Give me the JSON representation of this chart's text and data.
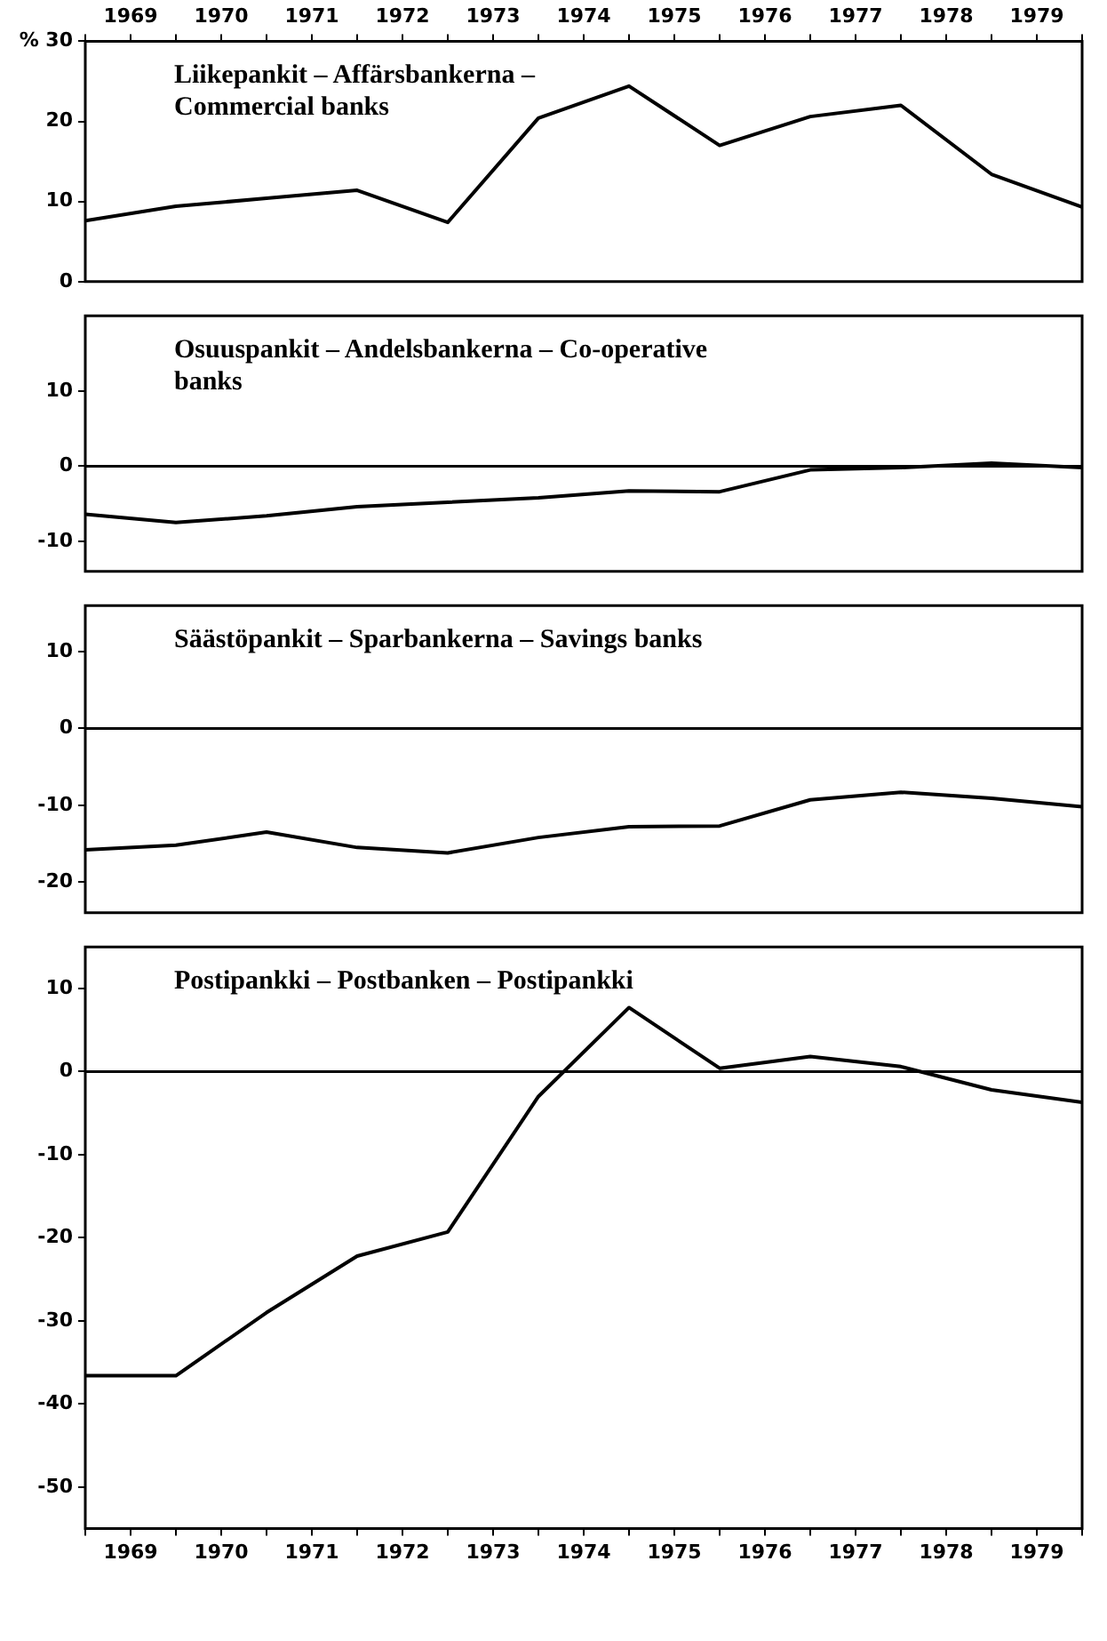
{
  "chart_data": [
    {
      "type": "line",
      "title": "Liikepankit – Affärsbankerna –\nCommercial banks",
      "x": [
        1969,
        1970,
        1971,
        1972,
        1973,
        1974,
        1975,
        1976,
        1977,
        1978,
        1979,
        1980
      ],
      "values": [
        7.6,
        9.4,
        10.4,
        11.4,
        7.4,
        20.4,
        24.4,
        17,
        20.6,
        22,
        13.4,
        9.3
      ],
      "color": "#000000",
      "xlim": [
        1969,
        1980
      ],
      "x2lim": [
        1969,
        1980
      ],
      "x2ticks": [
        {
          "value": 1969,
          "label": null
        },
        {
          "value": 1969.5,
          "label": "1969"
        },
        {
          "value": 1970,
          "label": null
        },
        {
          "value": 1970.5,
          "label": "1970"
        },
        {
          "value": 1971,
          "label": null
        },
        {
          "value": 1971.5,
          "label": "1971"
        },
        {
          "value": 1972,
          "label": null
        },
        {
          "value": 1972.5,
          "label": "1972"
        },
        {
          "value": 1973,
          "label": null
        },
        {
          "value": 1973.5,
          "label": "1973"
        },
        {
          "value": 1974,
          "label": null
        },
        {
          "value": 1974.5,
          "label": "1974"
        },
        {
          "value": 1975,
          "label": null
        },
        {
          "value": 1975.5,
          "label": "1975"
        },
        {
          "value": 1976,
          "label": null
        },
        {
          "value": 1976.5,
          "label": "1976"
        },
        {
          "value": 1977,
          "label": null
        },
        {
          "value": 1977.5,
          "label": "1977"
        },
        {
          "value": 1978,
          "label": null
        },
        {
          "value": 1978.5,
          "label": "1978"
        },
        {
          "value": 1979,
          "label": null
        },
        {
          "value": 1979.5,
          "label": "1979"
        },
        {
          "value": 1980,
          "label": null
        }
      ],
      "ylim": [
        0,
        30
      ],
      "yticks": [
        0,
        10,
        20,
        {
          "value": 30,
          "label": "% 30"
        }
      ],
      "grid": false,
      "legend": false,
      "marker": "none",
      "line_style": "solid"
    },
    {
      "type": "line",
      "title": "Osuuspankit – Andelsbankerna – Co-operative\nbanks",
      "x": [
        1969,
        1970,
        1971,
        1972,
        1973,
        1974,
        1975,
        1976,
        1977,
        1978,
        1979,
        1980
      ],
      "values": [
        -6.4,
        -7.5,
        -6.6,
        -5.4,
        -4.8,
        -4.2,
        -3.3,
        -3.4,
        -0.5,
        -0.2,
        0.4,
        -0.2
      ],
      "color": "#000000",
      "xlim": [
        1969,
        1980
      ],
      "ylim": [
        -14,
        20
      ],
      "yticks": [
        -10,
        0,
        10
      ],
      "tick_labels": "y",
      "ref_lines": [
        {
          "axis": "y",
          "value": 0,
          "color": "#000000"
        }
      ],
      "grid": false,
      "legend": false,
      "marker": "none",
      "line_style": "solid"
    },
    {
      "type": "line",
      "title": "Säästöpankit – Sparbankerna – Savings banks",
      "x": [
        1969,
        1970,
        1971,
        1972,
        1973,
        1974,
        1975,
        1976,
        1977,
        1978,
        1979,
        1980
      ],
      "values": [
        -15.8,
        -15.2,
        -13.5,
        -15.5,
        -16.2,
        -14.2,
        -12.8,
        -12.7,
        -9.3,
        -8.3,
        -9.1,
        -10.2
      ],
      "color": "#000000",
      "xlim": [
        1969,
        1980
      ],
      "ylim": [
        -24,
        16
      ],
      "yticks": [
        -20,
        -10,
        0,
        10
      ],
      "tick_labels": "y",
      "ref_lines": [
        {
          "axis": "y",
          "value": 0,
          "color": "#000000"
        }
      ],
      "grid": false,
      "legend": false,
      "marker": "none",
      "line_style": "solid"
    },
    {
      "type": "line",
      "title": "Postipankki – Postbanken – Postipankki",
      "x": [
        1969,
        1970,
        1971,
        1972,
        1973,
        1974,
        1975,
        1976,
        1977,
        1978,
        1979,
        1980
      ],
      "values": [
        -36.6,
        -36.6,
        -29,
        -22.2,
        -19.3,
        -3,
        7.7,
        0.4,
        1.8,
        0.6,
        -2.2,
        -3.7
      ],
      "color": "#000000",
      "xlim": [
        1969,
        1980
      ],
      "xticks": [
        {
          "value": 1969,
          "label": null
        },
        {
          "value": 1969.5,
          "label": "1969"
        },
        {
          "value": 1970,
          "label": null
        },
        {
          "value": 1970.5,
          "label": "1970"
        },
        {
          "value": 1971,
          "label": null
        },
        {
          "value": 1971.5,
          "label": "1971"
        },
        {
          "value": 1972,
          "label": null
        },
        {
          "value": 1972.5,
          "label": "1972"
        },
        {
          "value": 1973,
          "label": null
        },
        {
          "value": 1973.5,
          "label": "1973"
        },
        {
          "value": 1974,
          "label": null
        },
        {
          "value": 1974.5,
          "label": "1974"
        },
        {
          "value": 1975,
          "label": null
        },
        {
          "value": 1975.5,
          "label": "1975"
        },
        {
          "value": 1976,
          "label": null
        },
        {
          "value": 1976.5,
          "label": "1976"
        },
        {
          "value": 1977,
          "label": null
        },
        {
          "value": 1977.5,
          "label": "1977"
        },
        {
          "value": 1978,
          "label": null
        },
        {
          "value": 1978.5,
          "label": "1978"
        },
        {
          "value": 1979,
          "label": null
        },
        {
          "value": 1979.5,
          "label": "1979"
        },
        {
          "value": 1980,
          "label": null
        }
      ],
      "ylim": [
        -55,
        15
      ],
      "yticks": [
        -50,
        -40,
        -30,
        -20,
        -10,
        0,
        10
      ],
      "ref_lines": [
        {
          "axis": "y",
          "value": 0,
          "color": "#000000"
        }
      ],
      "grid": false,
      "legend": false,
      "marker": "none",
      "line_style": "solid"
    }
  ]
}
